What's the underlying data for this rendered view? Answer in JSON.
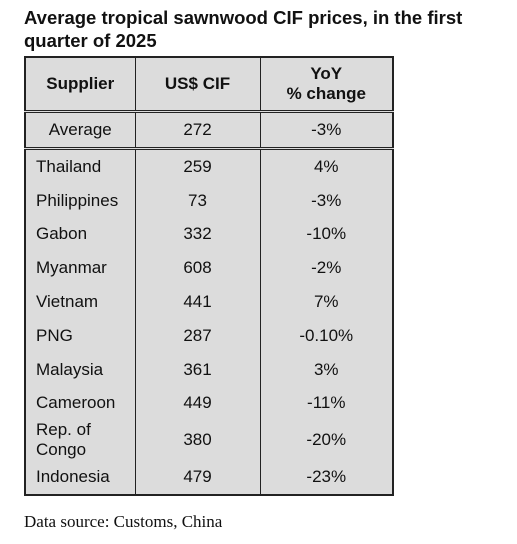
{
  "title": "Average tropical sawnwood CIF prices, in the first quarter of 2025",
  "table": {
    "header": [
      "Supplier",
      "US$ CIF",
      "YoY\n% change"
    ],
    "average": [
      "Average",
      272,
      "-3%"
    ],
    "rows": [
      [
        "Thailand",
        259,
        "4%"
      ],
      [
        "Philippines",
        73,
        "-3%"
      ],
      [
        "Gabon",
        332,
        "-10%"
      ],
      [
        "Myanmar",
        608,
        "-2%"
      ],
      [
        "Vietnam",
        441,
        "7%"
      ],
      [
        "PNG",
        287,
        "-0.10%"
      ],
      [
        "Malaysia",
        361,
        "3%"
      ],
      [
        "Cameroon",
        449,
        "-11%"
      ],
      [
        "Rep. of\nCongo",
        380,
        "-20%"
      ],
      [
        "Indonesia",
        479,
        "-23%"
      ]
    ]
  },
  "source": "Data source: Customs, China"
}
